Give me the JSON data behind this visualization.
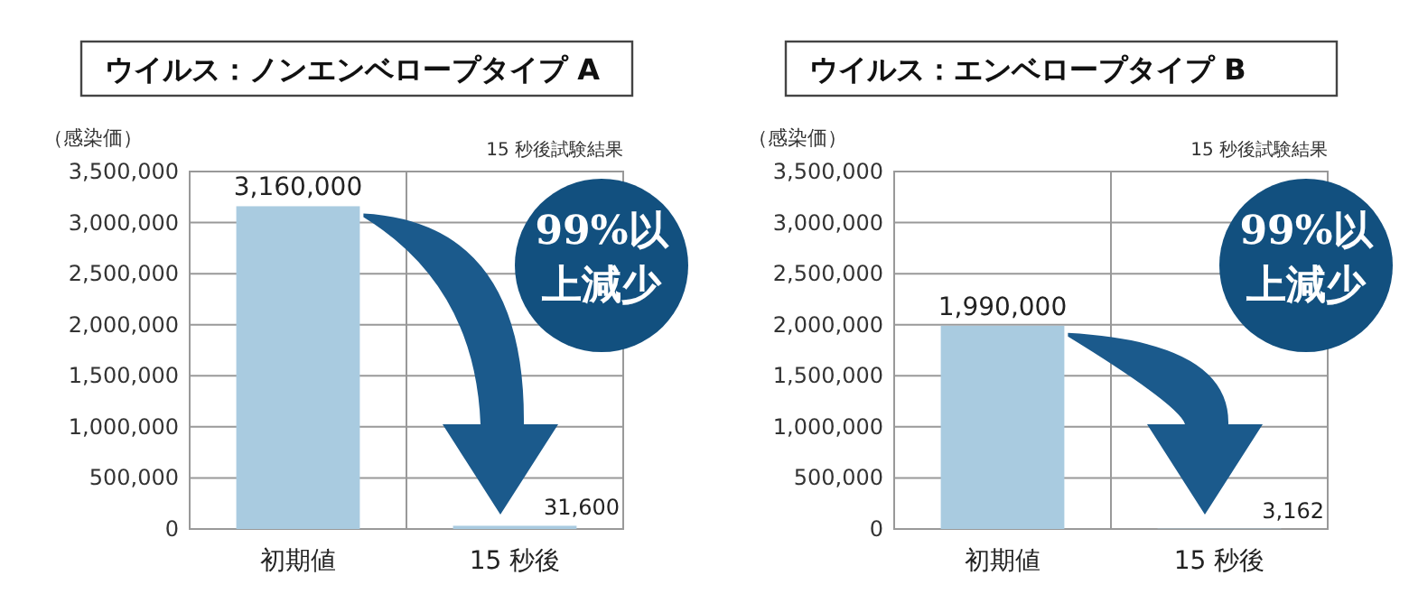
{
  "chart_data": [
    {
      "type": "bar",
      "title": "ウイルス：ノンエンベロープタイプ A",
      "ylabel": "（感染価）",
      "categories": [
        "初期値",
        "15 秒後"
      ],
      "values": [
        3160000,
        31600
      ],
      "value_labels": [
        "3,160,000",
        "31,600"
      ],
      "color": "#a9cbe0",
      "ylim": [
        0,
        3500000
      ],
      "yticks": [
        0,
        {
          "value": 500000,
          "label": "500,000"
        },
        {
          "value": 1000000,
          "label": "1,000,000"
        },
        {
          "value": 1500000,
          "label": "1,500,000"
        },
        {
          "value": 2000000,
          "label": "2,000,000"
        },
        {
          "value": 2500000,
          "label": "2,500,000"
        },
        {
          "value": 3000000,
          "label": "3,000,000"
        },
        {
          "value": 3500000,
          "label": "3,500,000"
        }
      ],
      "grid": "y",
      "annotations": [
        "15 秒後試験結果",
        "99%以上減少"
      ]
    },
    {
      "type": "bar",
      "title": "ウイルス：エンベロープタイプ B",
      "ylabel": "（感染価）",
      "categories": [
        "初期値",
        "15 秒後"
      ],
      "values": [
        1990000,
        3162
      ],
      "value_labels": [
        "1,990,000",
        "3,162"
      ],
      "color": "#a9cbe0",
      "ylim": [
        0,
        3500000
      ],
      "yticks": [
        0,
        {
          "value": 500000,
          "label": "500,000"
        },
        {
          "value": 1000000,
          "label": "1,000,000"
        },
        {
          "value": 1500000,
          "label": "1,500,000"
        },
        {
          "value": 2000000,
          "label": "2,000,000"
        },
        {
          "value": 2500000,
          "label": "2,500,000"
        },
        {
          "value": 3000000,
          "label": "3,000,000"
        },
        {
          "value": 3500000,
          "label": "3,500,000"
        }
      ],
      "grid": "y",
      "annotations": [
        "15 秒後試験結果",
        "99%以上減少"
      ]
    }
  ]
}
